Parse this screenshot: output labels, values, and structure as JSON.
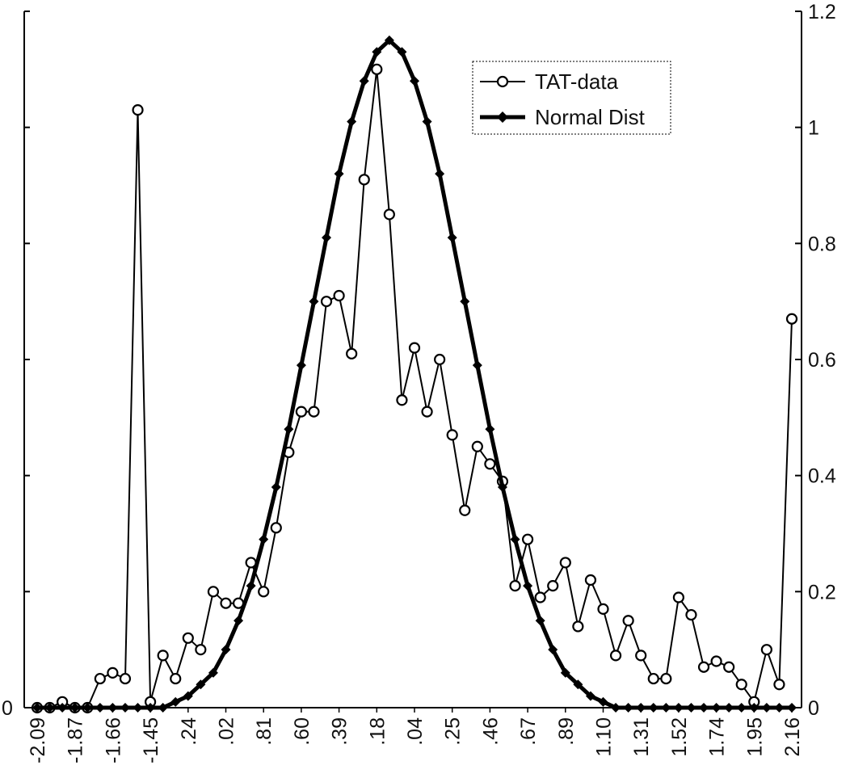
{
  "chart_data": {
    "type": "line",
    "xlabel": "",
    "ylabel": "",
    "legend_position": "top-right",
    "grid": false,
    "x_ticks": [
      "-2.09",
      "-1.87",
      "-1.66",
      "-1.45",
      ".24",
      ".02",
      ".81",
      ".60",
      ".39",
      ".18",
      ".04",
      ".25",
      ".46",
      ".67",
      ".89",
      "1.10",
      "1.31",
      "1.52",
      "1.74",
      "1.95",
      "2.16"
    ],
    "left_axis": {
      "ylim": [
        0,
        1.2
      ],
      "labeled_ticks": [
        "0"
      ]
    },
    "right_axis": {
      "ylim": [
        0,
        1.2
      ],
      "ticks": [
        "0",
        "0.2",
        "0.4",
        "0.6",
        "0.8",
        "1",
        "1.2"
      ]
    },
    "series": [
      {
        "name": "TAT-data",
        "marker": "open-circle",
        "axis": "right",
        "values": [
          0,
          0,
          0.01,
          0,
          0,
          0.05,
          0.06,
          0.05,
          1.03,
          0.01,
          0.09,
          0.05,
          0.12,
          0.1,
          0.2,
          0.18,
          0.18,
          0.25,
          0.2,
          0.31,
          0.44,
          0.51,
          0.51,
          0.7,
          0.71,
          0.61,
          0.91,
          1.1,
          0.85,
          0.53,
          0.62,
          0.51,
          0.6,
          0.47,
          0.34,
          0.45,
          0.42,
          0.39,
          0.21,
          0.29,
          0.19,
          0.21,
          0.25,
          0.14,
          0.22,
          0.17,
          0.09,
          0.15,
          0.09,
          0.05,
          0.05,
          0.19,
          0.16,
          0.07,
          0.08,
          0.07,
          0.04,
          0.01,
          0.1,
          0.04,
          0.67
        ]
      },
      {
        "name": "Normal Dist",
        "marker": "filled-diamond",
        "axis": "right",
        "values": [
          0,
          0,
          0,
          0,
          0,
          0,
          0,
          0,
          0,
          0,
          0,
          0.01,
          0.02,
          0.04,
          0.06,
          0.1,
          0.15,
          0.21,
          0.29,
          0.38,
          0.48,
          0.59,
          0.7,
          0.81,
          0.92,
          1.01,
          1.08,
          1.13,
          1.15,
          1.13,
          1.08,
          1.01,
          0.92,
          0.81,
          0.7,
          0.59,
          0.48,
          0.38,
          0.29,
          0.21,
          0.15,
          0.1,
          0.06,
          0.04,
          0.02,
          0.01,
          0,
          0,
          0,
          0,
          0,
          0,
          0,
          0,
          0,
          0,
          0,
          0,
          0,
          0,
          0
        ]
      }
    ]
  }
}
